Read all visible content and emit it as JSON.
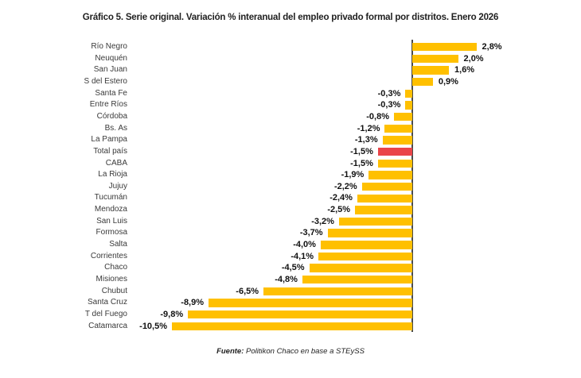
{
  "chart_data": {
    "type": "bar",
    "orientation": "horizontal",
    "title": "Gráfico 5. Serie original. Variación % interanual del empleo privado formal por distritos. Enero 2026",
    "source_label": "Fuente:",
    "source_text": "Politikon Chaco en base a STEySS",
    "unit": "%",
    "decimal_separator": ",",
    "xlim": [
      -10.5,
      2.8
    ],
    "grid": false,
    "legend": false,
    "bar_color": "#FFC000",
    "highlight_color": "#EA4449",
    "axis_line_color": "#4a4a4a",
    "highlight_index": 9,
    "highlight_category": "Total país",
    "categories": [
      "Río Negro",
      "Neuquén",
      "San Juan",
      "S del Estero",
      "Santa Fe",
      "Entre Ríos",
      "Córdoba",
      "Bs. As",
      "La Pampa",
      "Total país",
      "CABA",
      "La Rioja",
      "Jujuy",
      "Tucumán",
      "Mendoza",
      "San Luis",
      "Formosa",
      "Salta",
      "Corrientes",
      "Chaco",
      "Misiones",
      "Chubut",
      "Santa Cruz",
      "T del Fuego",
      "Catamarca"
    ],
    "values": [
      2.8,
      2.0,
      1.6,
      0.9,
      -0.3,
      -0.3,
      -0.8,
      -1.2,
      -1.3,
      -1.5,
      -1.5,
      -1.9,
      -2.2,
      -2.4,
      -2.5,
      -3.2,
      -3.7,
      -4.0,
      -4.1,
      -4.5,
      -4.8,
      -6.5,
      -8.9,
      -9.8,
      -10.5
    ],
    "display_values": [
      "2,8%",
      "2,0%",
      "1,6%",
      "0,9%",
      "-0,3%",
      "-0,3%",
      "-0,8%",
      "-1,2%",
      "-1,3%",
      "-1,5%",
      "-1,5%",
      "-1,9%",
      "-2,2%",
      "-2,4%",
      "-2,5%",
      "-3,2%",
      "-3,7%",
      "-4,0%",
      "-4,1%",
      "-4,5%",
      "-4,8%",
      "-6,5%",
      "-8,9%",
      "-9,8%",
      "-10,5%"
    ]
  }
}
